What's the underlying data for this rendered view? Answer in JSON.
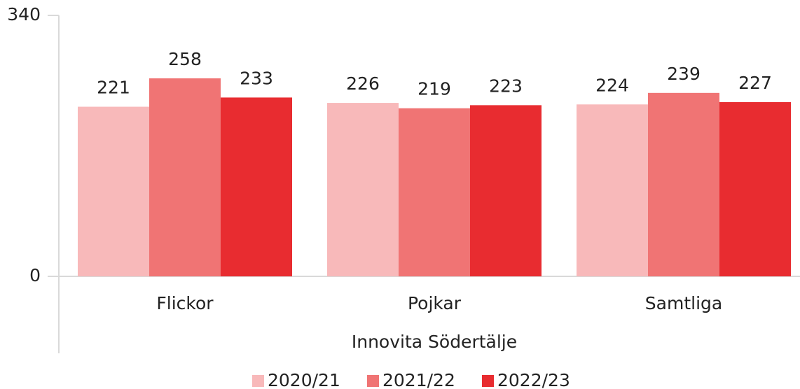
{
  "chart_data": {
    "type": "bar",
    "categories": [
      "Flickor",
      "Pojkar",
      "Samtliga"
    ],
    "x_label": "Innovita Södertälje",
    "series": [
      {
        "name": "2020/21",
        "color": "#f8b9ba",
        "values": [
          221,
          226,
          224
        ]
      },
      {
        "name": "2021/22",
        "color": "#f07474",
        "values": [
          258,
          219,
          239
        ]
      },
      {
        "name": "2022/23",
        "color": "#e82c30",
        "values": [
          233,
          223,
          227
        ]
      }
    ],
    "ylim": [
      0,
      340
    ],
    "yticks": [
      0,
      340
    ],
    "legend": "bottom"
  }
}
